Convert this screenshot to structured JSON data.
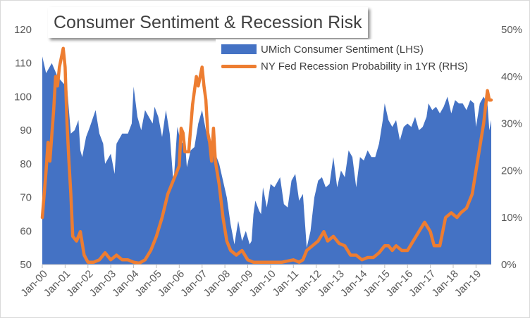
{
  "chart_data": {
    "type": "area",
    "title": "Consumer Sentiment & Recession Risk",
    "x_tick_labels": [
      "Jan-00",
      "Jan-01",
      "Jan-02",
      "Jan-03",
      "Jan-04",
      "Jan-05",
      "Jan-06",
      "Jan-07",
      "Jan-08",
      "Jan-09",
      "Jan-10",
      "Jan-11",
      "Jan-12",
      "Jan-13",
      "Jan-14",
      "Jan-15",
      "Jan-16",
      "Jan-17",
      "Jan-18",
      "Jan-19"
    ],
    "x_start": "Jan-00",
    "x_end": "Sep-19",
    "left_axis": {
      "min": 50,
      "max": 120,
      "ticks": [
        "50",
        "60",
        "70",
        "80",
        "90",
        "100",
        "110",
        "120"
      ]
    },
    "right_axis": {
      "min": 0,
      "max": 50,
      "ticks": [
        "0%",
        "10%",
        "20%",
        "30%",
        "40%",
        "50%"
      ]
    },
    "grid": "none",
    "legend_position": "top-right",
    "colors": {
      "sentiment": "#4472c4",
      "recession": "#ed7d31"
    },
    "series": [
      {
        "name": "UMich Consumer Sentiment (LHS)",
        "axis": "left",
        "type": "area",
        "points": [
          [
            "Jan-00",
            112
          ],
          [
            "Mar-00",
            107
          ],
          [
            "Jun-00",
            110
          ],
          [
            "Sep-00",
            106
          ],
          [
            "Dec-00",
            104
          ],
          [
            "Feb-01",
            103
          ],
          [
            "Apr-01",
            89
          ],
          [
            "Jun-01",
            90
          ],
          [
            "Aug-01",
            93
          ],
          [
            "Sep-01",
            84
          ],
          [
            "Oct-01",
            82
          ],
          [
            "Dec-01",
            88
          ],
          [
            "Feb-02",
            91
          ],
          [
            "May-02",
            96
          ],
          [
            "Jul-02",
            89
          ],
          [
            "Sep-02",
            86
          ],
          [
            "Oct-02",
            80
          ],
          [
            "Jan-03",
            83
          ],
          [
            "Mar-03",
            77
          ],
          [
            "Apr-03",
            86
          ],
          [
            "Jul-03",
            89
          ],
          [
            "Oct-03",
            89
          ],
          [
            "Dec-03",
            92
          ],
          [
            "Jan-04",
            103
          ],
          [
            "Mar-04",
            94
          ],
          [
            "May-04",
            90
          ],
          [
            "Jul-04",
            96
          ],
          [
            "Sep-04",
            94
          ],
          [
            "Nov-04",
            92
          ],
          [
            "Dec-04",
            97
          ],
          [
            "Feb-05",
            94
          ],
          [
            "Apr-05",
            88
          ],
          [
            "Jun-05",
            96
          ],
          [
            "Aug-05",
            89
          ],
          [
            "Oct-05",
            74
          ],
          [
            "Dec-05",
            91
          ],
          [
            "Feb-06",
            86
          ],
          [
            "Apr-06",
            87
          ],
          [
            "May-06",
            79
          ],
          [
            "Jul-06",
            84
          ],
          [
            "Sep-06",
            85
          ],
          [
            "Nov-06",
            92
          ],
          [
            "Jan-07",
            96
          ],
          [
            "Apr-07",
            87
          ],
          [
            "Jun-07",
            85
          ],
          [
            "Aug-07",
            83
          ],
          [
            "Oct-07",
            80
          ],
          [
            "Dec-07",
            75
          ],
          [
            "Feb-08",
            70
          ],
          [
            "Apr-08",
            62
          ],
          [
            "Jun-08",
            56
          ],
          [
            "Aug-08",
            63
          ],
          [
            "Oct-08",
            57
          ],
          [
            "Dec-08",
            60
          ],
          [
            "Feb-09",
            56
          ],
          [
            "Mar-09",
            57
          ],
          [
            "Apr-09",
            65
          ],
          [
            "May-09",
            69
          ],
          [
            "Jul-09",
            66
          ],
          [
            "Aug-09",
            65
          ],
          [
            "Sep-09",
            73
          ],
          [
            "Nov-09",
            67
          ],
          [
            "Jan-10",
            74
          ],
          [
            "Mar-10",
            73
          ],
          [
            "Jun-10",
            76
          ],
          [
            "Aug-10",
            68
          ],
          [
            "Oct-10",
            67
          ],
          [
            "Dec-10",
            75
          ],
          [
            "Feb-11",
            77
          ],
          [
            "Apr-11",
            69
          ],
          [
            "Jun-11",
            71
          ],
          [
            "Aug-11",
            55
          ],
          [
            "Oct-11",
            60
          ],
          [
            "Dec-11",
            70
          ],
          [
            "Feb-12",
            75
          ],
          [
            "Apr-12",
            76
          ],
          [
            "Jun-12",
            73
          ],
          [
            "Aug-12",
            74
          ],
          [
            "Oct-12",
            82
          ],
          [
            "Dec-12",
            73
          ],
          [
            "Feb-13",
            78
          ],
          [
            "Apr-13",
            76
          ],
          [
            "Jun-13",
            84
          ],
          [
            "Aug-13",
            82
          ],
          [
            "Oct-13",
            73
          ],
          [
            "Dec-13",
            82
          ],
          [
            "Feb-14",
            81
          ],
          [
            "Apr-14",
            84
          ],
          [
            "Jun-14",
            82
          ],
          [
            "Aug-14",
            82
          ],
          [
            "Oct-14",
            86
          ],
          [
            "Dec-14",
            93
          ],
          [
            "Jan-15",
            98
          ],
          [
            "Mar-15",
            93
          ],
          [
            "May-15",
            91
          ],
          [
            "Jul-15",
            93
          ],
          [
            "Sep-15",
            87
          ],
          [
            "Nov-15",
            91
          ],
          [
            "Jan-16",
            92
          ],
          [
            "Mar-16",
            91
          ],
          [
            "May-16",
            94
          ],
          [
            "Jul-16",
            90
          ],
          [
            "Sep-16",
            91
          ],
          [
            "Nov-16",
            94
          ],
          [
            "Dec-16",
            98
          ],
          [
            "Feb-17",
            96
          ],
          [
            "Apr-17",
            97
          ],
          [
            "Jun-17",
            95
          ],
          [
            "Aug-17",
            97
          ],
          [
            "Oct-17",
            100
          ],
          [
            "Dec-17",
            95
          ],
          [
            "Feb-18",
            99
          ],
          [
            "Apr-18",
            98
          ],
          [
            "Jun-18",
            98
          ],
          [
            "Aug-18",
            96
          ],
          [
            "Oct-18",
            99
          ],
          [
            "Dec-18",
            98
          ],
          [
            "Jan-19",
            91
          ],
          [
            "Mar-19",
            98
          ],
          [
            "May-19",
            100
          ],
          [
            "Jul-19",
            98
          ],
          [
            "Aug-19",
            90
          ],
          [
            "Sep-19",
            93
          ]
        ]
      },
      {
        "name": "NY Fed Recession Probability in 1YR (RHS)",
        "axis": "right",
        "type": "line",
        "points": [
          [
            "Jan-00",
            10
          ],
          [
            "Mar-00",
            20
          ],
          [
            "Apr-00",
            26
          ],
          [
            "May-00",
            22
          ],
          [
            "Jul-00",
            33
          ],
          [
            "Aug-00",
            40
          ],
          [
            "Sep-00",
            38
          ],
          [
            "Oct-00",
            42
          ],
          [
            "Nov-00",
            44
          ],
          [
            "Dec-00",
            46
          ],
          [
            "Jan-01",
            42
          ],
          [
            "Feb-01",
            30
          ],
          [
            "Mar-01",
            22
          ],
          [
            "Apr-01",
            15
          ],
          [
            "May-01",
            6
          ],
          [
            "Jul-01",
            5
          ],
          [
            "Sep-01",
            7
          ],
          [
            "Nov-01",
            2
          ],
          [
            "Jan-02",
            0.5
          ],
          [
            "Apr-02",
            0.5
          ],
          [
            "Jul-02",
            1
          ],
          [
            "Oct-02",
            2.5
          ],
          [
            "Jan-03",
            1
          ],
          [
            "Apr-03",
            2
          ],
          [
            "Jul-03",
            1
          ],
          [
            "Oct-03",
            1
          ],
          [
            "Jan-04",
            0.5
          ],
          [
            "Apr-04",
            0.3
          ],
          [
            "Jul-04",
            1
          ],
          [
            "Oct-04",
            3
          ],
          [
            "Jan-05",
            6
          ],
          [
            "Apr-05",
            10
          ],
          [
            "Jul-05",
            15
          ],
          [
            "Oct-05",
            18
          ],
          [
            "Jan-06",
            21
          ],
          [
            "Feb-06",
            29
          ],
          [
            "Mar-06",
            28
          ],
          [
            "Apr-06",
            24
          ],
          [
            "Jun-06",
            24
          ],
          [
            "Aug-06",
            34
          ],
          [
            "Oct-06",
            40
          ],
          [
            "Nov-06",
            38
          ],
          [
            "Jan-07",
            42
          ],
          [
            "Feb-07",
            38
          ],
          [
            "Mar-07",
            35
          ],
          [
            "Apr-07",
            28
          ],
          [
            "May-07",
            26
          ],
          [
            "Jun-07",
            22
          ],
          [
            "Jul-07",
            29
          ],
          [
            "Aug-07",
            22
          ],
          [
            "Oct-07",
            17
          ],
          [
            "Dec-07",
            10
          ],
          [
            "Feb-08",
            5
          ],
          [
            "Apr-08",
            3
          ],
          [
            "Jul-08",
            2
          ],
          [
            "Oct-08",
            3
          ],
          [
            "Jan-09",
            1
          ],
          [
            "Apr-09",
            0.5
          ],
          [
            "Jul-09",
            0.5
          ],
          [
            "Jan-10",
            0.5
          ],
          [
            "Jul-10",
            0.5
          ],
          [
            "Jan-11",
            1
          ],
          [
            "Apr-11",
            0.5
          ],
          [
            "Jun-11",
            1
          ],
          [
            "Aug-11",
            3
          ],
          [
            "Nov-11",
            4
          ],
          [
            "Feb-12",
            5
          ],
          [
            "May-12",
            7
          ],
          [
            "Jul-12",
            5
          ],
          [
            "Oct-12",
            6
          ],
          [
            "Jan-13",
            4.5
          ],
          [
            "Apr-13",
            4
          ],
          [
            "Jul-13",
            2
          ],
          [
            "Oct-13",
            2
          ],
          [
            "Jan-14",
            1
          ],
          [
            "Apr-14",
            1.5
          ],
          [
            "Jul-14",
            1.5
          ],
          [
            "Oct-14",
            2.5
          ],
          [
            "Jan-15",
            4
          ],
          [
            "Mar-15",
            4
          ],
          [
            "May-15",
            3
          ],
          [
            "Jul-15",
            4
          ],
          [
            "Oct-15",
            3
          ],
          [
            "Jan-16",
            3
          ],
          [
            "Apr-16",
            5
          ],
          [
            "Jul-16",
            7
          ],
          [
            "Oct-16",
            9
          ],
          [
            "Jan-17",
            7
          ],
          [
            "Mar-17",
            4
          ],
          [
            "Jun-17",
            4
          ],
          [
            "Sep-17",
            10
          ],
          [
            "Dec-17",
            11
          ],
          [
            "Mar-18",
            10
          ],
          [
            "May-18",
            11
          ],
          [
            "Aug-18",
            12
          ],
          [
            "Nov-18",
            15
          ],
          [
            "Jan-19",
            20
          ],
          [
            "Mar-19",
            25
          ],
          [
            "May-19",
            30
          ],
          [
            "Jul-19",
            37
          ],
          [
            "Aug-19",
            35
          ],
          [
            "Sep-19",
            35
          ]
        ]
      }
    ]
  }
}
